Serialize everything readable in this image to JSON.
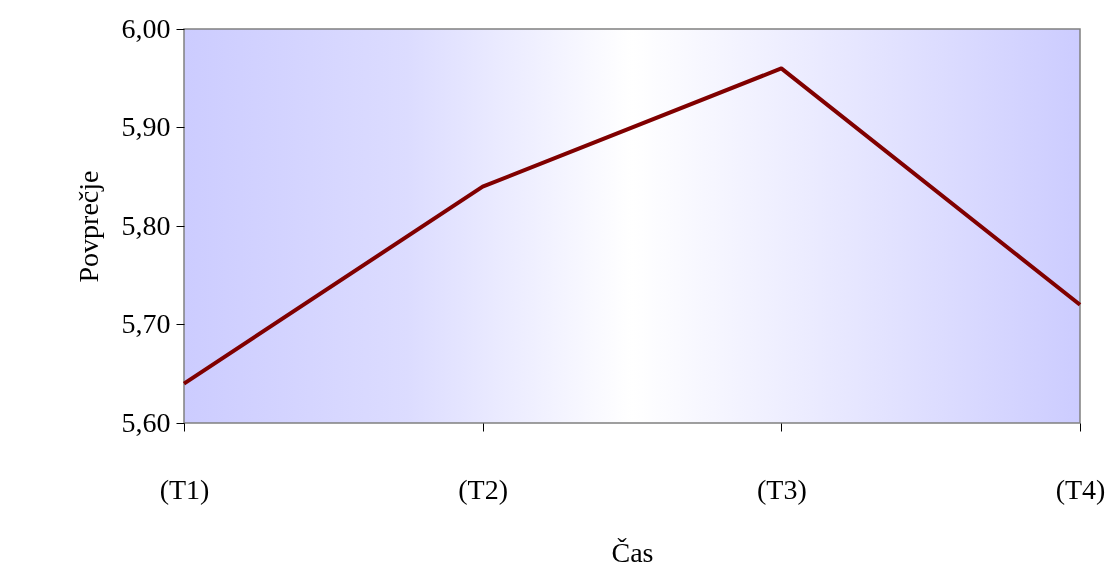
{
  "chart_data": {
    "type": "line",
    "xlabel": "Čas",
    "ylabel": "Povprečje",
    "categories": [
      "(T1)",
      "(T2)",
      "(T3)",
      "(T4)"
    ],
    "series": [
      {
        "color": "#800000",
        "values": [
          5.64,
          5.84,
          5.96,
          5.72
        ]
      }
    ],
    "ylim": [
      5.6,
      6.0
    ],
    "yticks": [
      {
        "value": 5.6,
        "label": "5,60"
      },
      {
        "value": 5.7,
        "label": "5,70"
      },
      {
        "value": 5.8,
        "label": "5,80"
      },
      {
        "value": 5.9,
        "label": "5,90"
      },
      {
        "value": 6.0,
        "label": "6,00"
      }
    ],
    "grid": false,
    "legend": false,
    "marker": "none",
    "line_style": "solid"
  }
}
